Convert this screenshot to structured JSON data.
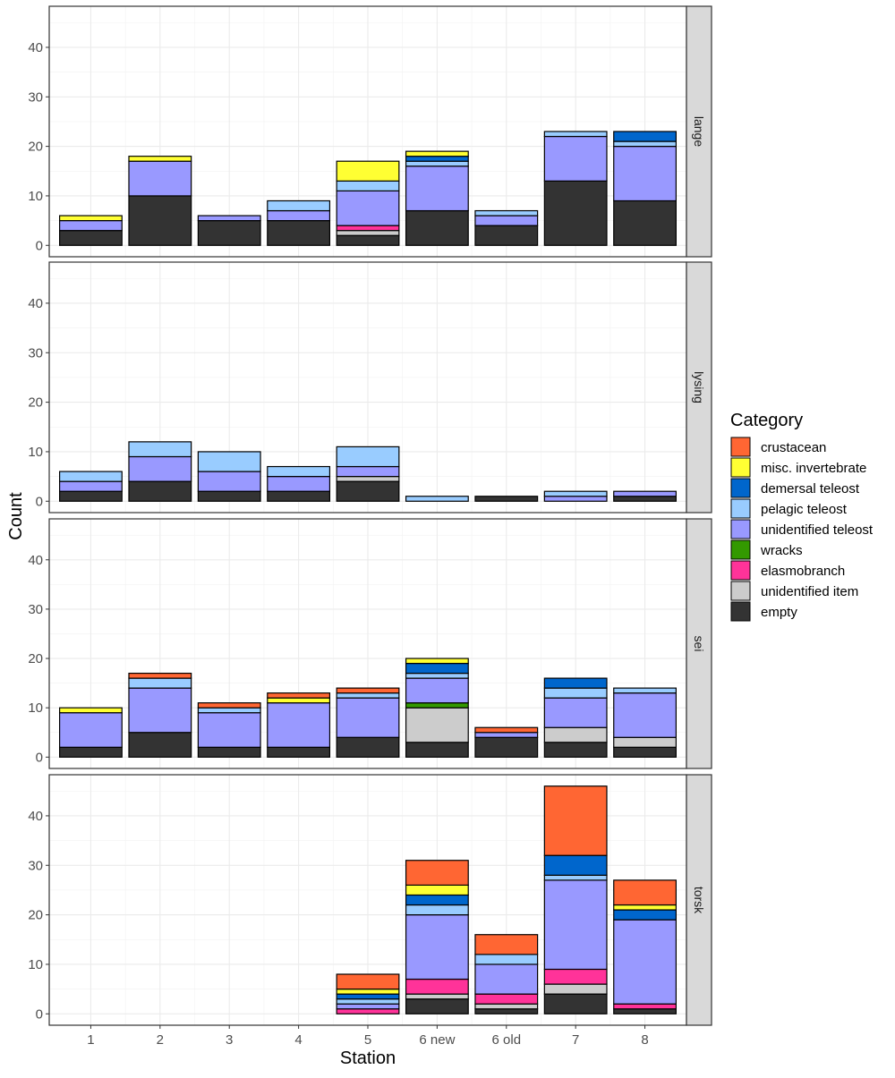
{
  "chart_data": {
    "type": "bar",
    "stacked": true,
    "facet_layout": "rows",
    "xlabel": "Station",
    "ylabel": "Count",
    "categories": [
      "1",
      "2",
      "3",
      "4",
      "5",
      "6 new",
      "6 old",
      "7",
      "8"
    ],
    "ylim": [
      0,
      46
    ],
    "yticks": [
      0,
      10,
      20,
      30,
      40
    ],
    "grid": true,
    "legend": {
      "title": "Category",
      "placement": "right",
      "entries": [
        "crustacean",
        "misc. invertebrate",
        "demersal teleost",
        "pelagic teleost",
        "unidentified teleost",
        "wracks",
        "elasmobranch",
        "unidentified item",
        "empty"
      ]
    },
    "stack_order": [
      "empty",
      "unidentified item",
      "elasmobranch",
      "wracks",
      "unidentified teleost",
      "pelagic teleost",
      "demersal teleost",
      "misc. invertebrate",
      "crustacean"
    ],
    "colors": {
      "crustacean": "#FF6633",
      "misc. invertebrate": "#FFFF33",
      "demersal teleost": "#0066CC",
      "pelagic teleost": "#99CCFF",
      "unidentified teleost": "#9999FF",
      "wracks": "#339900",
      "elasmobranch": "#FF3399",
      "unidentified item": "#CCCCCC",
      "empty": "#333333"
    },
    "facets": [
      {
        "name": "lange",
        "series": [
          {
            "name": "empty",
            "values": [
              3,
              10,
              5,
              5,
              2,
              7,
              4,
              13,
              9
            ]
          },
          {
            "name": "unidentified item",
            "values": [
              0,
              0,
              0,
              0,
              1,
              0,
              0,
              0,
              0
            ]
          },
          {
            "name": "elasmobranch",
            "values": [
              0,
              0,
              0,
              0,
              1,
              0,
              0,
              0,
              0
            ]
          },
          {
            "name": "wracks",
            "values": [
              0,
              0,
              0,
              0,
              0,
              0,
              0,
              0,
              0
            ]
          },
          {
            "name": "unidentified teleost",
            "values": [
              2,
              7,
              1,
              2,
              7,
              9,
              2,
              9,
              11
            ]
          },
          {
            "name": "pelagic teleost",
            "values": [
              0,
              0,
              0,
              2,
              2,
              1,
              1,
              1,
              1
            ]
          },
          {
            "name": "demersal teleost",
            "values": [
              0,
              0,
              0,
              0,
              0,
              1,
              0,
              0,
              2
            ]
          },
          {
            "name": "misc. invertebrate",
            "values": [
              1,
              1,
              0,
              0,
              4,
              1,
              0,
              0,
              0
            ]
          },
          {
            "name": "crustacean",
            "values": [
              0,
              0,
              0,
              0,
              0,
              0,
              0,
              0,
              0
            ]
          }
        ]
      },
      {
        "name": "lysing",
        "series": [
          {
            "name": "empty",
            "values": [
              2,
              4,
              2,
              2,
              4,
              0,
              1,
              0,
              1
            ]
          },
          {
            "name": "unidentified item",
            "values": [
              0,
              0,
              0,
              0,
              1,
              0,
              0,
              0,
              0
            ]
          },
          {
            "name": "elasmobranch",
            "values": [
              0,
              0,
              0,
              0,
              0,
              0,
              0,
              0,
              0
            ]
          },
          {
            "name": "wracks",
            "values": [
              0,
              0,
              0,
              0,
              0,
              0,
              0,
              0,
              0
            ]
          },
          {
            "name": "unidentified teleost",
            "values": [
              2,
              5,
              4,
              3,
              2,
              0,
              0,
              1,
              1
            ]
          },
          {
            "name": "pelagic teleost",
            "values": [
              2,
              3,
              4,
              2,
              4,
              1,
              0,
              1,
              0
            ]
          },
          {
            "name": "demersal teleost",
            "values": [
              0,
              0,
              0,
              0,
              0,
              0,
              0,
              0,
              0
            ]
          },
          {
            "name": "misc. invertebrate",
            "values": [
              0,
              0,
              0,
              0,
              0,
              0,
              0,
              0,
              0
            ]
          },
          {
            "name": "crustacean",
            "values": [
              0,
              0,
              0,
              0,
              0,
              0,
              0,
              0,
              0
            ]
          }
        ]
      },
      {
        "name": "sei",
        "series": [
          {
            "name": "empty",
            "values": [
              2,
              5,
              2,
              2,
              4,
              3,
              4,
              3,
              2
            ]
          },
          {
            "name": "unidentified item",
            "values": [
              0,
              0,
              0,
              0,
              0,
              7,
              0,
              3,
              2
            ]
          },
          {
            "name": "elasmobranch",
            "values": [
              0,
              0,
              0,
              0,
              0,
              0,
              0,
              0,
              0
            ]
          },
          {
            "name": "wracks",
            "values": [
              0,
              0,
              0,
              0,
              0,
              1,
              0,
              0,
              0
            ]
          },
          {
            "name": "unidentified teleost",
            "values": [
              7,
              9,
              7,
              9,
              8,
              5,
              1,
              6,
              9
            ]
          },
          {
            "name": "pelagic teleost",
            "values": [
              0,
              2,
              1,
              0,
              1,
              1,
              0,
              2,
              1
            ]
          },
          {
            "name": "demersal teleost",
            "values": [
              0,
              0,
              0,
              0,
              0,
              2,
              0,
              2,
              0
            ]
          },
          {
            "name": "misc. invertebrate",
            "values": [
              1,
              0,
              0,
              1,
              0,
              1,
              0,
              0,
              0
            ]
          },
          {
            "name": "crustacean",
            "values": [
              0,
              1,
              1,
              1,
              1,
              0,
              1,
              0,
              0
            ]
          }
        ]
      },
      {
        "name": "torsk",
        "series": [
          {
            "name": "empty",
            "values": [
              0,
              0,
              0,
              0,
              0,
              3,
              1,
              4,
              1
            ]
          },
          {
            "name": "unidentified item",
            "values": [
              0,
              0,
              0,
              0,
              0,
              1,
              1,
              2,
              0
            ]
          },
          {
            "name": "elasmobranch",
            "values": [
              0,
              0,
              0,
              0,
              1,
              3,
              2,
              3,
              1
            ]
          },
          {
            "name": "wracks",
            "values": [
              0,
              0,
              0,
              0,
              0,
              0,
              0,
              0,
              0
            ]
          },
          {
            "name": "unidentified teleost",
            "values": [
              0,
              0,
              0,
              0,
              1,
              13,
              6,
              18,
              17
            ]
          },
          {
            "name": "pelagic teleost",
            "values": [
              0,
              0,
              0,
              0,
              1,
              2,
              2,
              1,
              0
            ]
          },
          {
            "name": "demersal teleost",
            "values": [
              0,
              0,
              0,
              0,
              1,
              2,
              0,
              4,
              2
            ]
          },
          {
            "name": "misc. invertebrate",
            "values": [
              0,
              0,
              0,
              0,
              1,
              2,
              0,
              0,
              1
            ]
          },
          {
            "name": "crustacean",
            "values": [
              0,
              0,
              0,
              0,
              3,
              5,
              4,
              14,
              5
            ]
          }
        ]
      }
    ]
  }
}
